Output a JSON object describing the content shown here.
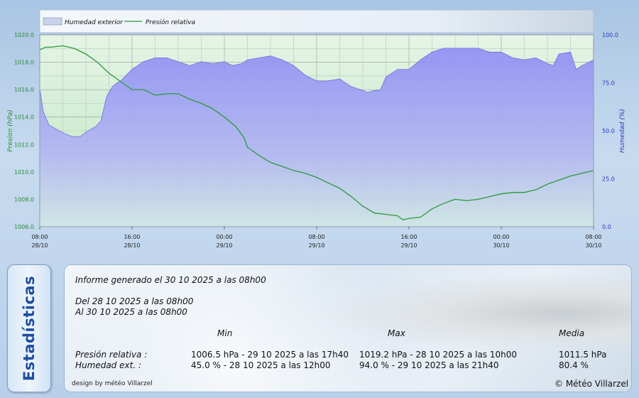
{
  "chart_data": {
    "type": "line",
    "legend": {
      "placement": "top-left",
      "entries": [
        "Humedad exterior",
        "Presión relativa"
      ]
    },
    "x_ticks": [
      {
        "time": "08:00",
        "date": "28/10"
      },
      {
        "time": "16:00",
        "date": "28/10"
      },
      {
        "time": "00:00",
        "date": "29/10"
      },
      {
        "time": "08:00",
        "date": "29/10"
      },
      {
        "time": "16:00",
        "date": "29/10"
      },
      {
        "time": "00:00",
        "date": "30/10"
      },
      {
        "time": "08:00",
        "date": "30/10"
      }
    ],
    "x_range_hours": [
      0,
      48
    ],
    "left_axis": {
      "label": "Presion (hPa)",
      "ylim": [
        1006.0,
        1020.0
      ],
      "ticks": [
        "1006.0",
        "1008.0",
        "1010.0",
        "1012.0",
        "1014.0",
        "1016.0",
        "1018.0",
        "1020.0"
      ]
    },
    "right_axis": {
      "label": "Humedad (%)",
      "ylim": [
        0.0,
        100.0
      ],
      "ticks": [
        "0.0",
        "25.0",
        "50.0",
        "75.0",
        "100.0"
      ]
    },
    "grid": true,
    "series": [
      {
        "name": "Humedad exterior",
        "type": "area",
        "axis": "right",
        "color": "#7b7bf0",
        "x": [
          0,
          0.3,
          0.8,
          1.4,
          2,
          2.8,
          3.5,
          4.2,
          4.8,
          5.3,
          5.8,
          6.3,
          6.7,
          7,
          7.5,
          8,
          9,
          10,
          11,
          12,
          13,
          14,
          15,
          16,
          16.7,
          17.5,
          18,
          19,
          20,
          21,
          22,
          23,
          24,
          25,
          26,
          27,
          28,
          28.4,
          29,
          29.5,
          30,
          31,
          32,
          32.6,
          33,
          33.5,
          34,
          35,
          36,
          37,
          38,
          39,
          40,
          41,
          42,
          43,
          44,
          44.5,
          45,
          46,
          46.5,
          47,
          48
        ],
        "values": [
          72,
          60,
          53,
          51,
          49,
          47,
          47,
          50,
          52,
          55,
          68,
          73,
          75,
          76,
          79,
          82,
          86,
          88,
          88,
          86,
          84,
          86,
          85,
          86,
          84,
          85,
          87,
          88,
          89,
          87,
          84,
          79,
          76,
          76,
          77,
          73,
          71,
          70,
          71,
          71,
          78,
          82,
          82,
          85,
          87,
          89,
          91,
          93,
          93,
          93,
          93,
          91,
          91,
          88,
          87,
          88,
          85,
          84,
          90,
          91,
          82,
          84,
          87
        ]
      },
      {
        "name": "Presión relativa",
        "type": "line",
        "axis": "left",
        "color": "#2a9a3a",
        "x": [
          0,
          0.5,
          1,
          2,
          3,
          4,
          5,
          6,
          7,
          8,
          9,
          10,
          11,
          12,
          13,
          14,
          15,
          16,
          17,
          17.7,
          18,
          19,
          20,
          21,
          22,
          23,
          24,
          25,
          26,
          27,
          28,
          29,
          30,
          31,
          31.5,
          32,
          33,
          34,
          35,
          36,
          37,
          38,
          39,
          40,
          41,
          42,
          43,
          44,
          45,
          46,
          47,
          48
        ],
        "values": [
          1018.9,
          1019.1,
          1019.1,
          1019.2,
          1019.0,
          1018.6,
          1018.0,
          1017.2,
          1016.6,
          1016.0,
          1016.0,
          1015.6,
          1015.7,
          1015.7,
          1015.3,
          1015.0,
          1014.6,
          1014.0,
          1013.3,
          1012.5,
          1011.8,
          1011.2,
          1010.7,
          1010.4,
          1010.1,
          1009.9,
          1009.6,
          1009.2,
          1008.8,
          1008.2,
          1007.5,
          1007.0,
          1006.9,
          1006.8,
          1006.5,
          1006.6,
          1006.7,
          1007.3,
          1007.7,
          1008.0,
          1007.9,
          1008.0,
          1008.2,
          1008.4,
          1008.5,
          1008.5,
          1008.7,
          1009.1,
          1009.4,
          1009.7,
          1009.9,
          1010.1
        ]
      }
    ]
  },
  "stats": {
    "tab_label": "Estadísticas",
    "report_line": "Informe generado el 30 10 2025 a las 08h00",
    "from_line": "Del 28 10 2025 a las 08h00",
    "to_line": "Al 30 10 2025 a las 08h00",
    "columns": {
      "min": "Min",
      "max": "Max",
      "avg": "Media"
    },
    "rows": [
      {
        "label": "Presión relativa :",
        "min": "1006.5 hPa - 29 10 2025 a las 17h40",
        "max": "1019.2 hPa - 28 10 2025 a las 10h00",
        "avg": "1011.5 hPa"
      },
      {
        "label": "Humedad ext. :",
        "min": "45.0 % - 28 10 2025 a las 12h00",
        "max": "94.0 % - 29 10 2025 a las 21h40",
        "avg": "80.4 %"
      }
    ],
    "design_credit": "design by météo Villarzel",
    "copyright": "© Météo Villarzel"
  }
}
